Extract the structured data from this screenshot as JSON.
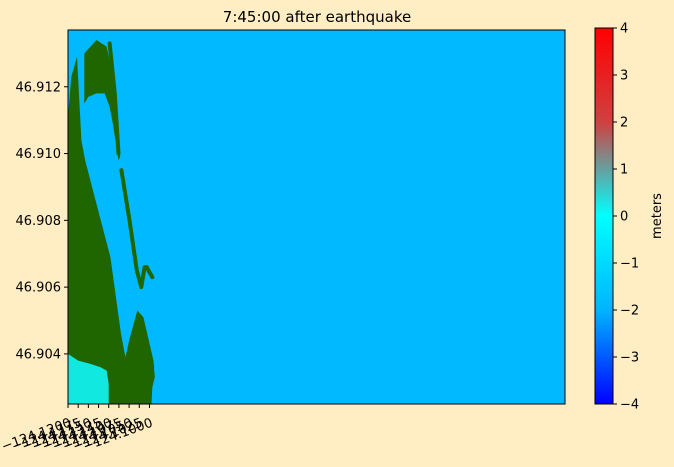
{
  "chart_data": {
    "type": "heatmap",
    "title": "7:45:00 after earthquake",
    "xlabel": "",
    "ylabel": "",
    "xlim": [
      -124.12,
      -123.998
    ],
    "ylim": [
      46.9025,
      46.9137
    ],
    "x_ticks": [
      {
        "value": -124.12,
        "label": "−124.1200"
      },
      {
        "value": -124.1175,
        "label": "−124.1175"
      },
      {
        "value": -124.115,
        "label": "−124.1150"
      },
      {
        "value": -124.1125,
        "label": "−124.1125"
      },
      {
        "value": -124.11,
        "label": "−124.1100"
      },
      {
        "value": -124.1075,
        "label": "−124.1075"
      },
      {
        "value": -124.105,
        "label": "−124.1050"
      },
      {
        "value": -124.1025,
        "label": "−124.1025"
      },
      {
        "value": -124.1,
        "label": "−124.1000"
      }
    ],
    "y_ticks": [
      {
        "value": 46.904,
        "label": "46.904"
      },
      {
        "value": 46.906,
        "label": "46.906"
      },
      {
        "value": 46.908,
        "label": "46.908"
      },
      {
        "value": 46.91,
        "label": "46.910"
      },
      {
        "value": 46.912,
        "label": "46.912"
      }
    ],
    "colorbar": {
      "label": "meters",
      "range": [
        -4,
        4
      ],
      "ticks": [
        {
          "value": 4,
          "label": "4"
        },
        {
          "value": 3,
          "label": "3"
        },
        {
          "value": 2,
          "label": "2"
        },
        {
          "value": 1,
          "label": "1"
        },
        {
          "value": 0,
          "label": "0"
        },
        {
          "value": -1,
          "label": "−1"
        },
        {
          "value": -2,
          "label": "−2"
        },
        {
          "value": -3,
          "label": "−3"
        },
        {
          "value": -4,
          "label": "−4"
        }
      ],
      "colors": [
        "#0000ff",
        "#00b4ff",
        "#00ffff",
        "#d04040",
        "#ff0000"
      ]
    },
    "colors": {
      "land": "#1f6600",
      "water": "#00b9ff",
      "shallow_water": "#10e8e0",
      "figure_background": "#ffedc4"
    },
    "regions": [
      {
        "name": "",
        "kind": "land",
        "points": [
          [
            -124.12,
            46.9025
          ],
          [
            -124.12,
            46.9111
          ],
          [
            -124.1192,
            46.9123
          ],
          [
            -124.1178,
            46.9129
          ],
          [
            -124.1167,
            46.9104
          ],
          [
            -124.1158,
            46.9098
          ],
          [
            -124.1096,
            46.9069
          ],
          [
            -124.107,
            46.9046
          ],
          [
            -124.1059,
            46.9039
          ],
          [
            -124.105,
            46.9044
          ],
          [
            -124.103,
            46.9053
          ],
          [
            -124.1015,
            46.9051
          ],
          [
            -124.099,
            46.9038
          ],
          [
            -124.0987,
            46.9033
          ],
          [
            -124.0993,
            46.903
          ],
          [
            -124.0995,
            46.9025
          ]
        ]
      },
      {
        "name": "",
        "kind": "land",
        "points": [
          [
            -124.116,
            46.913
          ],
          [
            -124.113,
            46.9134
          ],
          [
            -124.1105,
            46.9132
          ],
          [
            -124.1093,
            46.9125
          ],
          [
            -124.1086,
            46.9113
          ],
          [
            -124.1072,
            46.9099
          ],
          [
            -124.1076,
            46.9098
          ],
          [
            -124.109,
            46.9109
          ],
          [
            -124.1098,
            46.9114
          ],
          [
            -124.111,
            46.9118
          ],
          [
            -124.113,
            46.9118
          ],
          [
            -124.115,
            46.9117
          ],
          [
            -124.116,
            46.9115
          ]
        ]
      },
      {
        "name": "",
        "kind": "shallow",
        "points": [
          [
            -124.12,
            46.9025
          ],
          [
            -124.12,
            46.904
          ],
          [
            -124.1175,
            46.9038
          ],
          [
            -124.1145,
            46.9037
          ],
          [
            -124.112,
            46.9036
          ],
          [
            -124.1105,
            46.9035
          ],
          [
            -124.11,
            46.9031
          ],
          [
            -124.11,
            46.9025
          ]
        ]
      }
    ],
    "lines": [
      {
        "name": "",
        "kind": "jetty",
        "points": [
          [
            -124.1069,
            46.9095
          ],
          [
            -124.1049,
            46.908
          ],
          [
            -124.1031,
            46.9065
          ],
          [
            -124.102,
            46.906
          ],
          [
            -124.1012,
            46.9066
          ],
          [
            -124.1007,
            46.9066
          ],
          [
            -124.0993,
            46.9063
          ]
        ]
      },
      {
        "name": "",
        "kind": "jetty",
        "points": [
          [
            -124.1098,
            46.9133
          ],
          [
            -124.1085,
            46.9118
          ],
          [
            -124.1076,
            46.91
          ]
        ]
      }
    ]
  }
}
